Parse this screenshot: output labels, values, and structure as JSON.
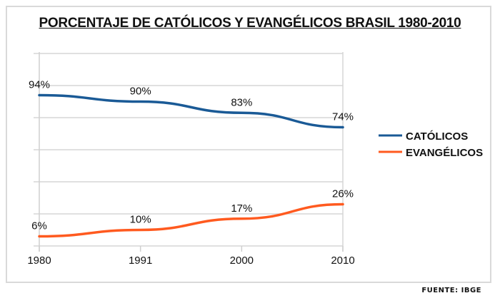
{
  "chart_data": {
    "type": "line",
    "title": "PORCENTAJE DE CATÓLICOS Y EVANGÉLICOS BRASIL 1980-2010",
    "xlabel": "",
    "ylabel": "",
    "categories": [
      "1980",
      "1991",
      "2000",
      "2010"
    ],
    "ylim": [
      0,
      120
    ],
    "y_gridlines": [
      0,
      20,
      40,
      60,
      80,
      100,
      120
    ],
    "grid": true,
    "legend_position": "right",
    "series": [
      {
        "name": "CATÓLICOS",
        "color": "#1a5a96",
        "values": [
          94,
          90,
          83,
          74
        ],
        "labels": [
          "94%",
          "90%",
          "83%",
          "74%"
        ]
      },
      {
        "name": "EVANGÉLICOS",
        "color": "#ff5a1f",
        "values": [
          6,
          10,
          17,
          26
        ],
        "labels": [
          "6%",
          "10%",
          "17%",
          "26%"
        ]
      }
    ]
  },
  "source": "FUENTE: IBGE"
}
